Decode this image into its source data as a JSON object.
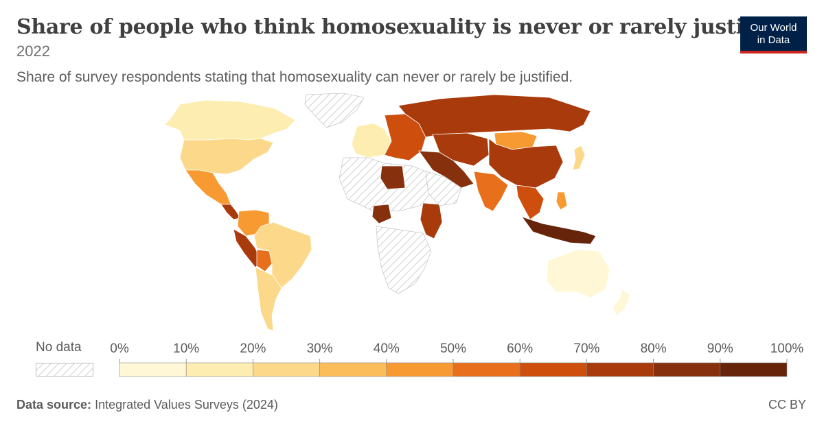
{
  "header": {
    "title": "Share of people who think homosexuality is never or rarely justified",
    "year": "2022",
    "subtitle": "Share of survey respondents stating that homosexuality can never or rarely be justified."
  },
  "logo": {
    "line1": "Our World",
    "line2": "in Data"
  },
  "legend": {
    "no_data_label": "No data",
    "ticks": [
      "0%",
      "10%",
      "20%",
      "30%",
      "40%",
      "50%",
      "60%",
      "70%",
      "80%",
      "90%",
      "100%"
    ],
    "bins": [
      {
        "from": 0,
        "to": 10,
        "color": "#fff7d6"
      },
      {
        "from": 10,
        "to": 20,
        "color": "#fdedb0"
      },
      {
        "from": 20,
        "to": 30,
        "color": "#fcd98a"
      },
      {
        "from": 30,
        "to": 40,
        "color": "#fbbd59"
      },
      {
        "from": 40,
        "to": 50,
        "color": "#f79a32"
      },
      {
        "from": 50,
        "to": 60,
        "color": "#e86f1c"
      },
      {
        "from": 60,
        "to": 70,
        "color": "#cd4e0d"
      },
      {
        "from": 70,
        "to": 80,
        "color": "#a83a0b"
      },
      {
        "from": 80,
        "to": 90,
        "color": "#86300d"
      },
      {
        "from": 90,
        "to": 100,
        "color": "#66240b"
      }
    ]
  },
  "footer": {
    "source_label": "Data source:",
    "source_text": "Integrated Values Surveys (2024)",
    "license": "CC BY"
  },
  "colors": {
    "no_data_hatch": "#cfcfcf",
    "border": "#ffffff"
  },
  "map": {
    "regions": [
      {
        "name": "canada",
        "value": 10
      },
      {
        "name": "usa",
        "value": 22
      },
      {
        "name": "mexico",
        "value": 45
      },
      {
        "name": "central-america",
        "value": 70
      },
      {
        "name": "colombia-venezuela",
        "value": 45
      },
      {
        "name": "peru-ecuador",
        "value": 72
      },
      {
        "name": "bolivia",
        "value": 52
      },
      {
        "name": "brazil",
        "value": 28
      },
      {
        "name": "argentina-chile",
        "value": 25
      },
      {
        "name": "greenland",
        "value": null
      },
      {
        "name": "western-europe",
        "value": 12
      },
      {
        "name": "eastern-europe",
        "value": 62
      },
      {
        "name": "russia",
        "value": 72
      },
      {
        "name": "north-africa",
        "value": null
      },
      {
        "name": "libya",
        "value": 88
      },
      {
        "name": "nigeria",
        "value": 85
      },
      {
        "name": "ethiopia-kenya",
        "value": 78
      },
      {
        "name": "zimbabwe",
        "value": 88
      },
      {
        "name": "southern-africa",
        "value": null
      },
      {
        "name": "middle-east",
        "value": 85
      },
      {
        "name": "saudi-arabia",
        "value": null
      },
      {
        "name": "india",
        "value": 55
      },
      {
        "name": "kazakhstan-central-asia",
        "value": 78
      },
      {
        "name": "mongolia",
        "value": 45
      },
      {
        "name": "china",
        "value": 78
      },
      {
        "name": "japan",
        "value": 20
      },
      {
        "name": "southeast-asia",
        "value": 60
      },
      {
        "name": "philippines",
        "value": 45
      },
      {
        "name": "indonesia",
        "value": 90
      },
      {
        "name": "australia",
        "value": 8
      },
      {
        "name": "new-zealand",
        "value": 5
      }
    ]
  }
}
